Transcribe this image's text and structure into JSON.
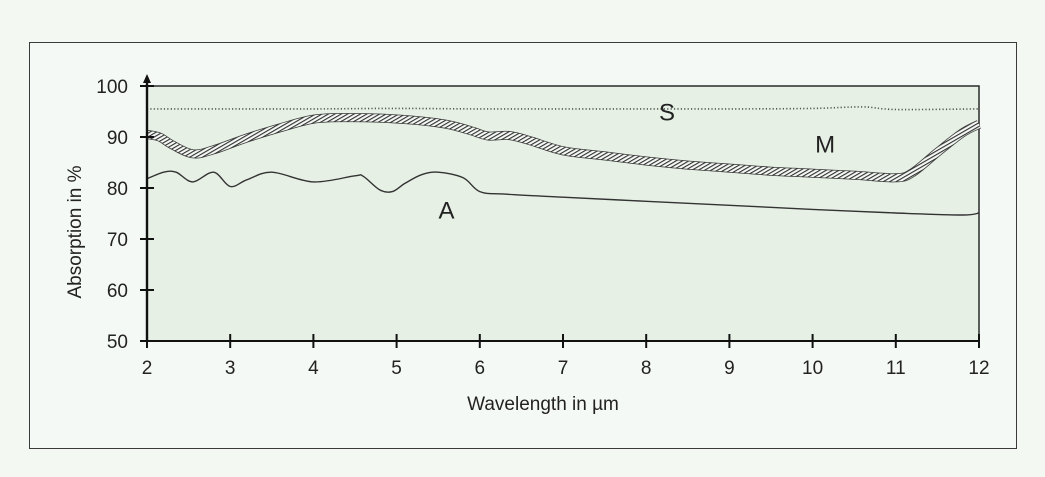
{
  "chart_data": {
    "type": "line",
    "title": "",
    "xlabel": "Wavelength in µm",
    "ylabel": "Absorption in %",
    "xlim": [
      2,
      12
    ],
    "ylim": [
      50,
      100
    ],
    "xticks": [
      2,
      3,
      4,
      5,
      6,
      7,
      8,
      9,
      10,
      11,
      12
    ],
    "yticks": [
      50,
      60,
      70,
      80,
      90,
      100
    ],
    "grid": false,
    "background": "#e6f0e4",
    "series": [
      {
        "name": "S",
        "style": "dotted",
        "color": "#555555",
        "x": [
          2,
          3,
          4,
          5,
          6,
          7,
          8,
          9,
          10,
          10.6,
          11,
          12
        ],
        "y": [
          95.5,
          95.5,
          95.5,
          95.6,
          95.5,
          95.5,
          95.5,
          95.5,
          95.6,
          95.9,
          95.4,
          95.5
        ]
      },
      {
        "name": "M",
        "style": "hatched-band",
        "color": "#3a3a3a",
        "x": [
          2,
          2.15,
          2.3,
          2.55,
          2.8,
          3.2,
          3.6,
          4.0,
          4.4,
          4.8,
          5.2,
          5.6,
          5.9,
          6.1,
          6.35,
          6.6,
          7.0,
          7.5,
          8.0,
          8.5,
          9.0,
          9.5,
          10.0,
          10.5,
          11.0,
          11.2,
          11.5,
          11.8,
          12.0
        ],
        "y": [
          90.5,
          90.0,
          88.5,
          86.7,
          87.5,
          89.8,
          91.8,
          93.5,
          93.8,
          93.7,
          93.3,
          92.5,
          91.2,
          90.2,
          90.3,
          89.3,
          87.3,
          86.3,
          85.3,
          84.5,
          83.9,
          83.3,
          82.9,
          82.5,
          82.0,
          83.0,
          87.0,
          90.8,
          92.5
        ]
      },
      {
        "name": "A",
        "style": "solid",
        "color": "#333333",
        "x": [
          2,
          2.2,
          2.35,
          2.55,
          2.8,
          3.0,
          3.2,
          3.5,
          4.0,
          4.5,
          4.6,
          4.8,
          4.95,
          5.1,
          5.3,
          5.5,
          5.8,
          6.0,
          6.3,
          7.0,
          8.0,
          9.0,
          10.0,
          11.0,
          11.8,
          12.0
        ],
        "y": [
          81.8,
          83.1,
          83.1,
          81.2,
          83.1,
          80.3,
          81.6,
          83.1,
          81.2,
          82.4,
          82.3,
          79.6,
          79.3,
          80.9,
          82.6,
          83.1,
          82.0,
          79.3,
          78.8,
          78.2,
          77.4,
          76.6,
          75.8,
          75.1,
          74.7,
          75.1
        ]
      }
    ],
    "annotations": [
      {
        "text": "S",
        "x": 8.25,
        "y": 93.2
      },
      {
        "text": "M",
        "x": 10.15,
        "y": 87.0
      },
      {
        "text": "A",
        "x": 5.6,
        "y": 74.0
      }
    ]
  }
}
